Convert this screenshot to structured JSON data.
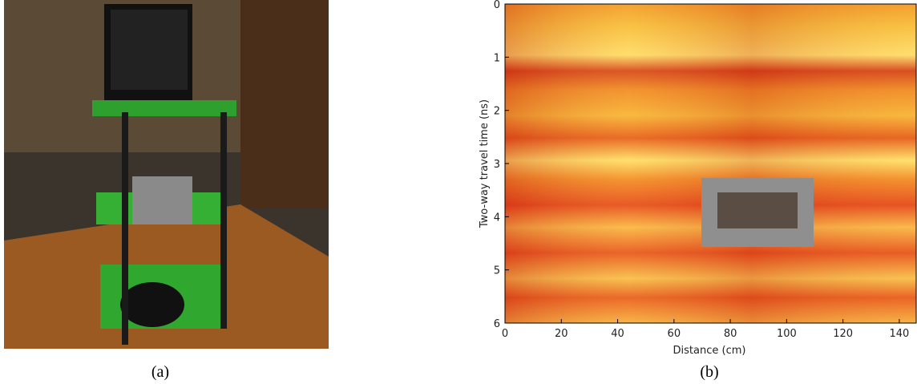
{
  "captions": [
    "(a)",
    "(b)"
  ],
  "chart_data": {
    "type": "heatmap",
    "xlabel": "Distance (cm)",
    "ylabel": "Two-way travel time (ns)",
    "xlim": [
      0,
      146
    ],
    "ylim": [
      6,
      0
    ],
    "xticks": [
      0,
      20,
      40,
      60,
      80,
      100,
      120,
      140
    ],
    "yticks": [
      0,
      1,
      2,
      3,
      4,
      5,
      6
    ]
  }
}
